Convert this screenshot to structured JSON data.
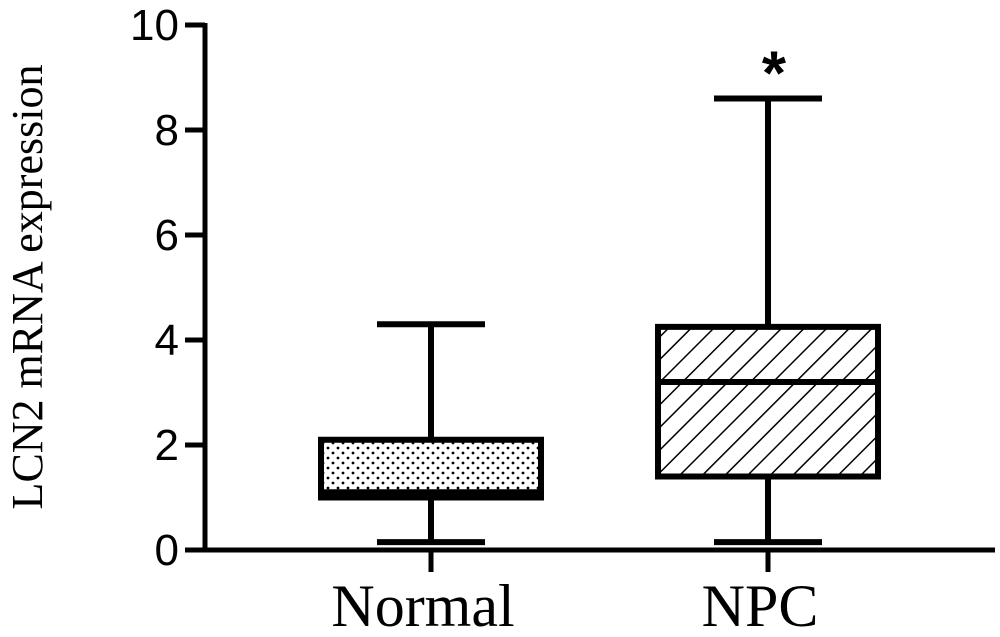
{
  "chart_data": {
    "type": "box",
    "ylabel": "LCN2 mRNA expression",
    "xlabel": "",
    "ylim": [
      0,
      10
    ],
    "yticks": [
      "0",
      "2",
      "4",
      "6",
      "8",
      "10"
    ],
    "grid": false,
    "categories": [
      "Normal",
      "NPC"
    ],
    "boxes": [
      {
        "category": "Normal",
        "min": 0.15,
        "q1": 1.0,
        "median": 1.1,
        "q3": 2.1,
        "max": 4.3,
        "pattern": "dots",
        "annotation": ""
      },
      {
        "category": "NPC",
        "min": 0.15,
        "q1": 1.4,
        "median": 3.2,
        "q3": 4.25,
        "max": 8.6,
        "pattern": "hatch",
        "annotation": "*"
      }
    ]
  }
}
